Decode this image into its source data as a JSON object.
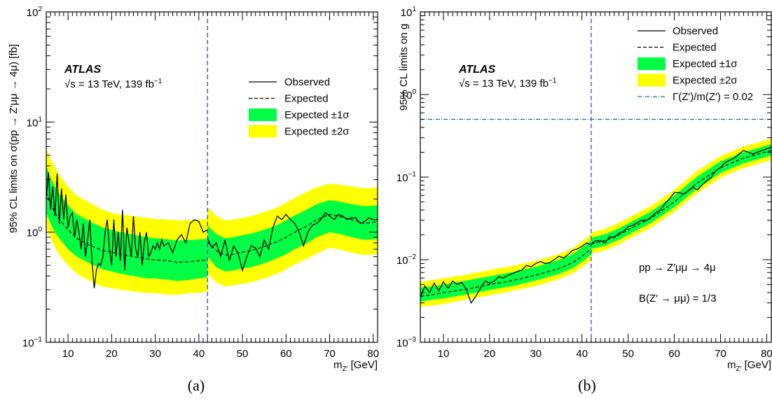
{
  "colors": {
    "band1": "#00ff44",
    "band2": "#ffff00",
    "observed": "#000000",
    "expected": "#000000",
    "divider": "#3b3bd6",
    "width_line": "#1f6b8f"
  },
  "chart_data": [
    {
      "type": "line",
      "caption": "(a)",
      "ylabel": "95% CL limits on σ(pp → Z′μμ → 4μ) [fb]",
      "xlabel": "m_Z′ [GeV]",
      "xlabel_main": "m",
      "xlabel_sub": "Z′",
      "xlabel_unit": " [GeV]",
      "yscale": "log",
      "xlim": [
        5,
        81
      ],
      "ylim": [
        0.1,
        100
      ],
      "x_ticks": [
        "10",
        "20",
        "30",
        "40",
        "50",
        "60",
        "70",
        "80"
      ],
      "y_ticks": [
        {
          "base": "10",
          "exp": "−1"
        },
        {
          "base": "10",
          "exp": "0"
        },
        {
          "base": "10",
          "exp": "1"
        },
        {
          "base": "10",
          "exp": "2"
        }
      ],
      "experiment": "ATLAS",
      "energy_label": "√s = 13 TeV, 139 fb",
      "energy_sup": "−1",
      "legend_position": "right",
      "legend": [
        "Observed",
        "Expected",
        "Expected ±1σ",
        "Expected ±2σ"
      ],
      "divider_x": 42,
      "segments": [
        {
          "x": [
            5,
            6,
            7,
            8,
            10,
            12,
            15,
            18,
            20,
            22,
            25,
            28,
            30,
            33,
            35,
            38,
            40,
            42
          ],
          "expected": [
            2.3,
            1.8,
            1.5,
            1.3,
            1.05,
            0.88,
            0.76,
            0.68,
            0.66,
            0.63,
            0.6,
            0.57,
            0.56,
            0.55,
            0.53,
            0.54,
            0.55,
            0.56
          ],
          "band1_lo": [
            1.5,
            1.2,
            1.0,
            0.88,
            0.7,
            0.6,
            0.52,
            0.46,
            0.44,
            0.42,
            0.4,
            0.38,
            0.38,
            0.37,
            0.36,
            0.37,
            0.38,
            0.39
          ],
          "band1_hi": [
            4.0,
            3.1,
            2.6,
            2.2,
            1.75,
            1.45,
            1.25,
            1.1,
            1.05,
            1.0,
            0.95,
            0.9,
            0.88,
            0.86,
            0.84,
            0.85,
            0.86,
            0.87
          ],
          "band2_lo": [
            1.1,
            0.88,
            0.73,
            0.62,
            0.5,
            0.42,
            0.36,
            0.32,
            0.31,
            0.3,
            0.29,
            0.28,
            0.28,
            0.27,
            0.27,
            0.28,
            0.28,
            0.29
          ],
          "band2_hi": [
            5.8,
            4.6,
            3.9,
            3.3,
            2.6,
            2.15,
            1.85,
            1.6,
            1.5,
            1.45,
            1.4,
            1.35,
            1.32,
            1.3,
            1.28,
            1.28,
            1.3,
            1.32
          ],
          "observed_x": [
            5,
            5.5,
            6,
            6.5,
            7,
            7.5,
            8,
            8.5,
            9,
            9.5,
            10,
            10.5,
            11,
            11.5,
            12,
            12.5,
            13,
            13.5,
            14,
            14.5,
            15,
            15.5,
            16,
            16.5,
            17,
            17.5,
            18,
            18.5,
            19,
            19.5,
            20,
            20.5,
            21,
            21.5,
            22,
            22.5,
            23,
            23.5,
            24,
            24.5,
            25,
            25.5,
            26,
            26.5,
            27,
            27.5,
            28,
            28.5,
            29,
            29.5,
            30,
            30.5,
            31,
            31.5,
            32,
            33,
            34,
            35,
            36,
            37,
            38,
            39,
            40,
            41,
            42
          ],
          "observed": [
            2.0,
            3.5,
            1.6,
            2.6,
            1.4,
            3.4,
            1.2,
            2.5,
            1.3,
            2.2,
            1.1,
            1.4,
            1.5,
            0.9,
            1.3,
            1.0,
            0.7,
            1.2,
            0.6,
            0.85,
            1.3,
            0.55,
            0.31,
            0.45,
            0.52,
            0.5,
            0.6,
            1.0,
            1.3,
            0.7,
            0.5,
            1.3,
            0.6,
            1.0,
            0.55,
            1.6,
            0.45,
            1.1,
            0.8,
            0.6,
            1.4,
            0.7,
            0.6,
            1.0,
            0.5,
            0.8,
            1.0,
            0.6,
            0.65,
            0.75,
            0.7,
            0.8,
            0.7,
            0.85,
            0.75,
            0.8,
            0.65,
            0.85,
            0.95,
            0.8,
            1.2,
            1.3,
            1.25,
            1.0,
            1.05
          ]
        },
        {
          "x": [
            42,
            44,
            46,
            48,
            50,
            52,
            55,
            58,
            60,
            62,
            65,
            67,
            70,
            72,
            75,
            78,
            81
          ],
          "expected": [
            0.82,
            0.68,
            0.62,
            0.63,
            0.66,
            0.68,
            0.74,
            0.82,
            0.9,
            1.0,
            1.15,
            1.3,
            1.45,
            1.4,
            1.3,
            1.2,
            1.25
          ],
          "band1_lo": [
            0.6,
            0.48,
            0.44,
            0.45,
            0.47,
            0.48,
            0.52,
            0.58,
            0.63,
            0.7,
            0.8,
            0.9,
            1.0,
            0.97,
            0.9,
            0.85,
            0.87
          ],
          "band1_hi": [
            1.15,
            0.96,
            0.88,
            0.9,
            0.94,
            0.97,
            1.05,
            1.16,
            1.28,
            1.42,
            1.62,
            1.8,
            1.95,
            1.9,
            1.8,
            1.72,
            1.75
          ],
          "band2_lo": [
            0.42,
            0.35,
            0.32,
            0.33,
            0.34,
            0.35,
            0.38,
            0.42,
            0.46,
            0.51,
            0.58,
            0.64,
            0.72,
            0.7,
            0.65,
            0.62,
            0.63
          ],
          "band2_hi": [
            1.7,
            1.4,
            1.28,
            1.3,
            1.35,
            1.4,
            1.52,
            1.68,
            1.85,
            2.05,
            2.35,
            2.55,
            2.75,
            2.7,
            2.6,
            2.5,
            2.55
          ],
          "observed_x": [
            42,
            43,
            44,
            45,
            46,
            47,
            48,
            49,
            50,
            51,
            52,
            53,
            54,
            55,
            56,
            57,
            58,
            59,
            60,
            61,
            62,
            63,
            64,
            65,
            66,
            67,
            68,
            69,
            70,
            71,
            72,
            73,
            74,
            75,
            76,
            77,
            78,
            79,
            80,
            81
          ],
          "observed": [
            0.88,
            0.72,
            0.8,
            0.6,
            0.85,
            0.55,
            0.75,
            0.65,
            0.45,
            0.6,
            0.75,
            0.72,
            0.6,
            0.85,
            0.7,
            1.1,
            1.4,
            1.3,
            1.45,
            1.3,
            1.2,
            1.0,
            0.75,
            1.0,
            1.15,
            1.2,
            1.3,
            1.5,
            1.4,
            1.3,
            1.45,
            1.4,
            1.3,
            1.35,
            1.35,
            1.2,
            1.25,
            1.35,
            1.3,
            1.3
          ]
        }
      ]
    },
    {
      "type": "line",
      "caption": "(b)",
      "ylabel": "95% CL limits on g",
      "xlabel": "m_Z′ [GeV]",
      "xlabel_main": "m",
      "xlabel_sub": "Z′",
      "xlabel_unit": " [GeV]",
      "yscale": "log",
      "xlim": [
        5,
        81
      ],
      "ylim": [
        0.001,
        10
      ],
      "x_ticks": [
        "10",
        "20",
        "30",
        "40",
        "50",
        "60",
        "70",
        "80"
      ],
      "y_ticks": [
        {
          "base": "10",
          "exp": "−3"
        },
        {
          "base": "10",
          "exp": "−2"
        },
        {
          "base": "10",
          "exp": "−1"
        },
        {
          "base": "10",
          "exp": "0"
        },
        {
          "base": "10",
          "exp": "1"
        }
      ],
      "experiment": "ATLAS",
      "energy_label": "√s = 13 TeV, 139 fb",
      "energy_sup": "−1",
      "legend_position": "top-right",
      "legend": [
        "Observed",
        "Expected",
        "Expected ±1σ",
        "Expected ±2σ",
        "Γ(Z′)/m(Z′) = 0.02"
      ],
      "width_line_y": 0.5,
      "annotations": [
        "pp → Z′μμ → 4μ",
        "B(Z′ → μμ) = 1/3"
      ],
      "divider_x": 42,
      "segments": [
        {
          "x": [
            5,
            8,
            10,
            15,
            20,
            25,
            30,
            35,
            38,
            40,
            42
          ],
          "expected": [
            0.0036,
            0.0038,
            0.004,
            0.0044,
            0.005,
            0.0056,
            0.0065,
            0.0078,
            0.0092,
            0.011,
            0.0135
          ],
          "band1_lo": [
            0.0031,
            0.0033,
            0.0034,
            0.0038,
            0.0043,
            0.0048,
            0.0056,
            0.0067,
            0.0079,
            0.0094,
            0.0115
          ],
          "band1_hi": [
            0.0046,
            0.0048,
            0.005,
            0.0056,
            0.0063,
            0.0071,
            0.0082,
            0.0099,
            0.0117,
            0.014,
            0.0172
          ],
          "band2_lo": [
            0.0027,
            0.0028,
            0.0029,
            0.0033,
            0.0037,
            0.0042,
            0.0048,
            0.0058,
            0.0068,
            0.0081,
            0.0099
          ],
          "band2_hi": [
            0.0054,
            0.0057,
            0.006,
            0.0066,
            0.0075,
            0.0084,
            0.0097,
            0.0117,
            0.0138,
            0.0165,
            0.0203
          ],
          "observed_x": [
            5,
            6,
            7,
            8,
            9,
            10,
            11,
            12,
            13,
            14,
            15,
            16,
            17,
            18,
            19,
            20,
            21,
            22,
            23,
            24,
            25,
            26,
            27,
            28,
            29,
            30,
            31,
            32,
            33,
            34,
            35,
            36,
            37,
            38,
            39,
            40,
            41,
            42
          ],
          "observed": [
            0.0035,
            0.0048,
            0.004,
            0.0052,
            0.0042,
            0.0054,
            0.0045,
            0.0055,
            0.005,
            0.0053,
            0.0043,
            0.003,
            0.0036,
            0.0045,
            0.0055,
            0.0052,
            0.0055,
            0.0062,
            0.006,
            0.0065,
            0.0068,
            0.0072,
            0.0075,
            0.0085,
            0.0082,
            0.009,
            0.0095,
            0.009,
            0.0092,
            0.01,
            0.011,
            0.0105,
            0.0115,
            0.013,
            0.0135,
            0.0145,
            0.016,
            0.015
          ]
        },
        {
          "x": [
            42,
            45,
            48,
            50,
            55,
            60,
            65,
            70,
            75,
            81
          ],
          "expected": [
            0.0155,
            0.017,
            0.02,
            0.023,
            0.032,
            0.05,
            0.085,
            0.13,
            0.17,
            0.21
          ],
          "band1_lo": [
            0.0135,
            0.0148,
            0.0174,
            0.02,
            0.028,
            0.043,
            0.073,
            0.112,
            0.147,
            0.182
          ],
          "band1_hi": [
            0.0185,
            0.0203,
            0.0239,
            0.0275,
            0.0385,
            0.06,
            0.102,
            0.155,
            0.2,
            0.25
          ],
          "band2_lo": [
            0.0118,
            0.013,
            0.0153,
            0.0176,
            0.0245,
            0.038,
            0.064,
            0.098,
            0.129,
            0.16
          ],
          "band2_hi": [
            0.0215,
            0.0237,
            0.0279,
            0.032,
            0.045,
            0.07,
            0.12,
            0.18,
            0.235,
            0.29
          ],
          "observed_x": [
            42,
            43,
            44,
            45,
            46,
            47,
            48,
            49,
            50,
            51,
            52,
            53,
            54,
            55,
            56,
            57,
            58,
            59,
            60,
            61,
            62,
            63,
            64,
            65,
            66,
            67,
            68,
            69,
            70,
            71,
            72,
            73,
            74,
            75,
            76,
            77,
            78,
            79,
            80,
            81
          ],
          "observed": [
            0.0155,
            0.017,
            0.017,
            0.016,
            0.019,
            0.0185,
            0.021,
            0.022,
            0.025,
            0.026,
            0.028,
            0.03,
            0.03,
            0.033,
            0.037,
            0.04,
            0.048,
            0.055,
            0.065,
            0.065,
            0.062,
            0.068,
            0.075,
            0.07,
            0.08,
            0.09,
            0.1,
            0.12,
            0.13,
            0.15,
            0.16,
            0.17,
            0.19,
            0.21,
            0.2,
            0.19,
            0.2,
            0.21,
            0.22,
            0.23
          ]
        }
      ]
    }
  ]
}
